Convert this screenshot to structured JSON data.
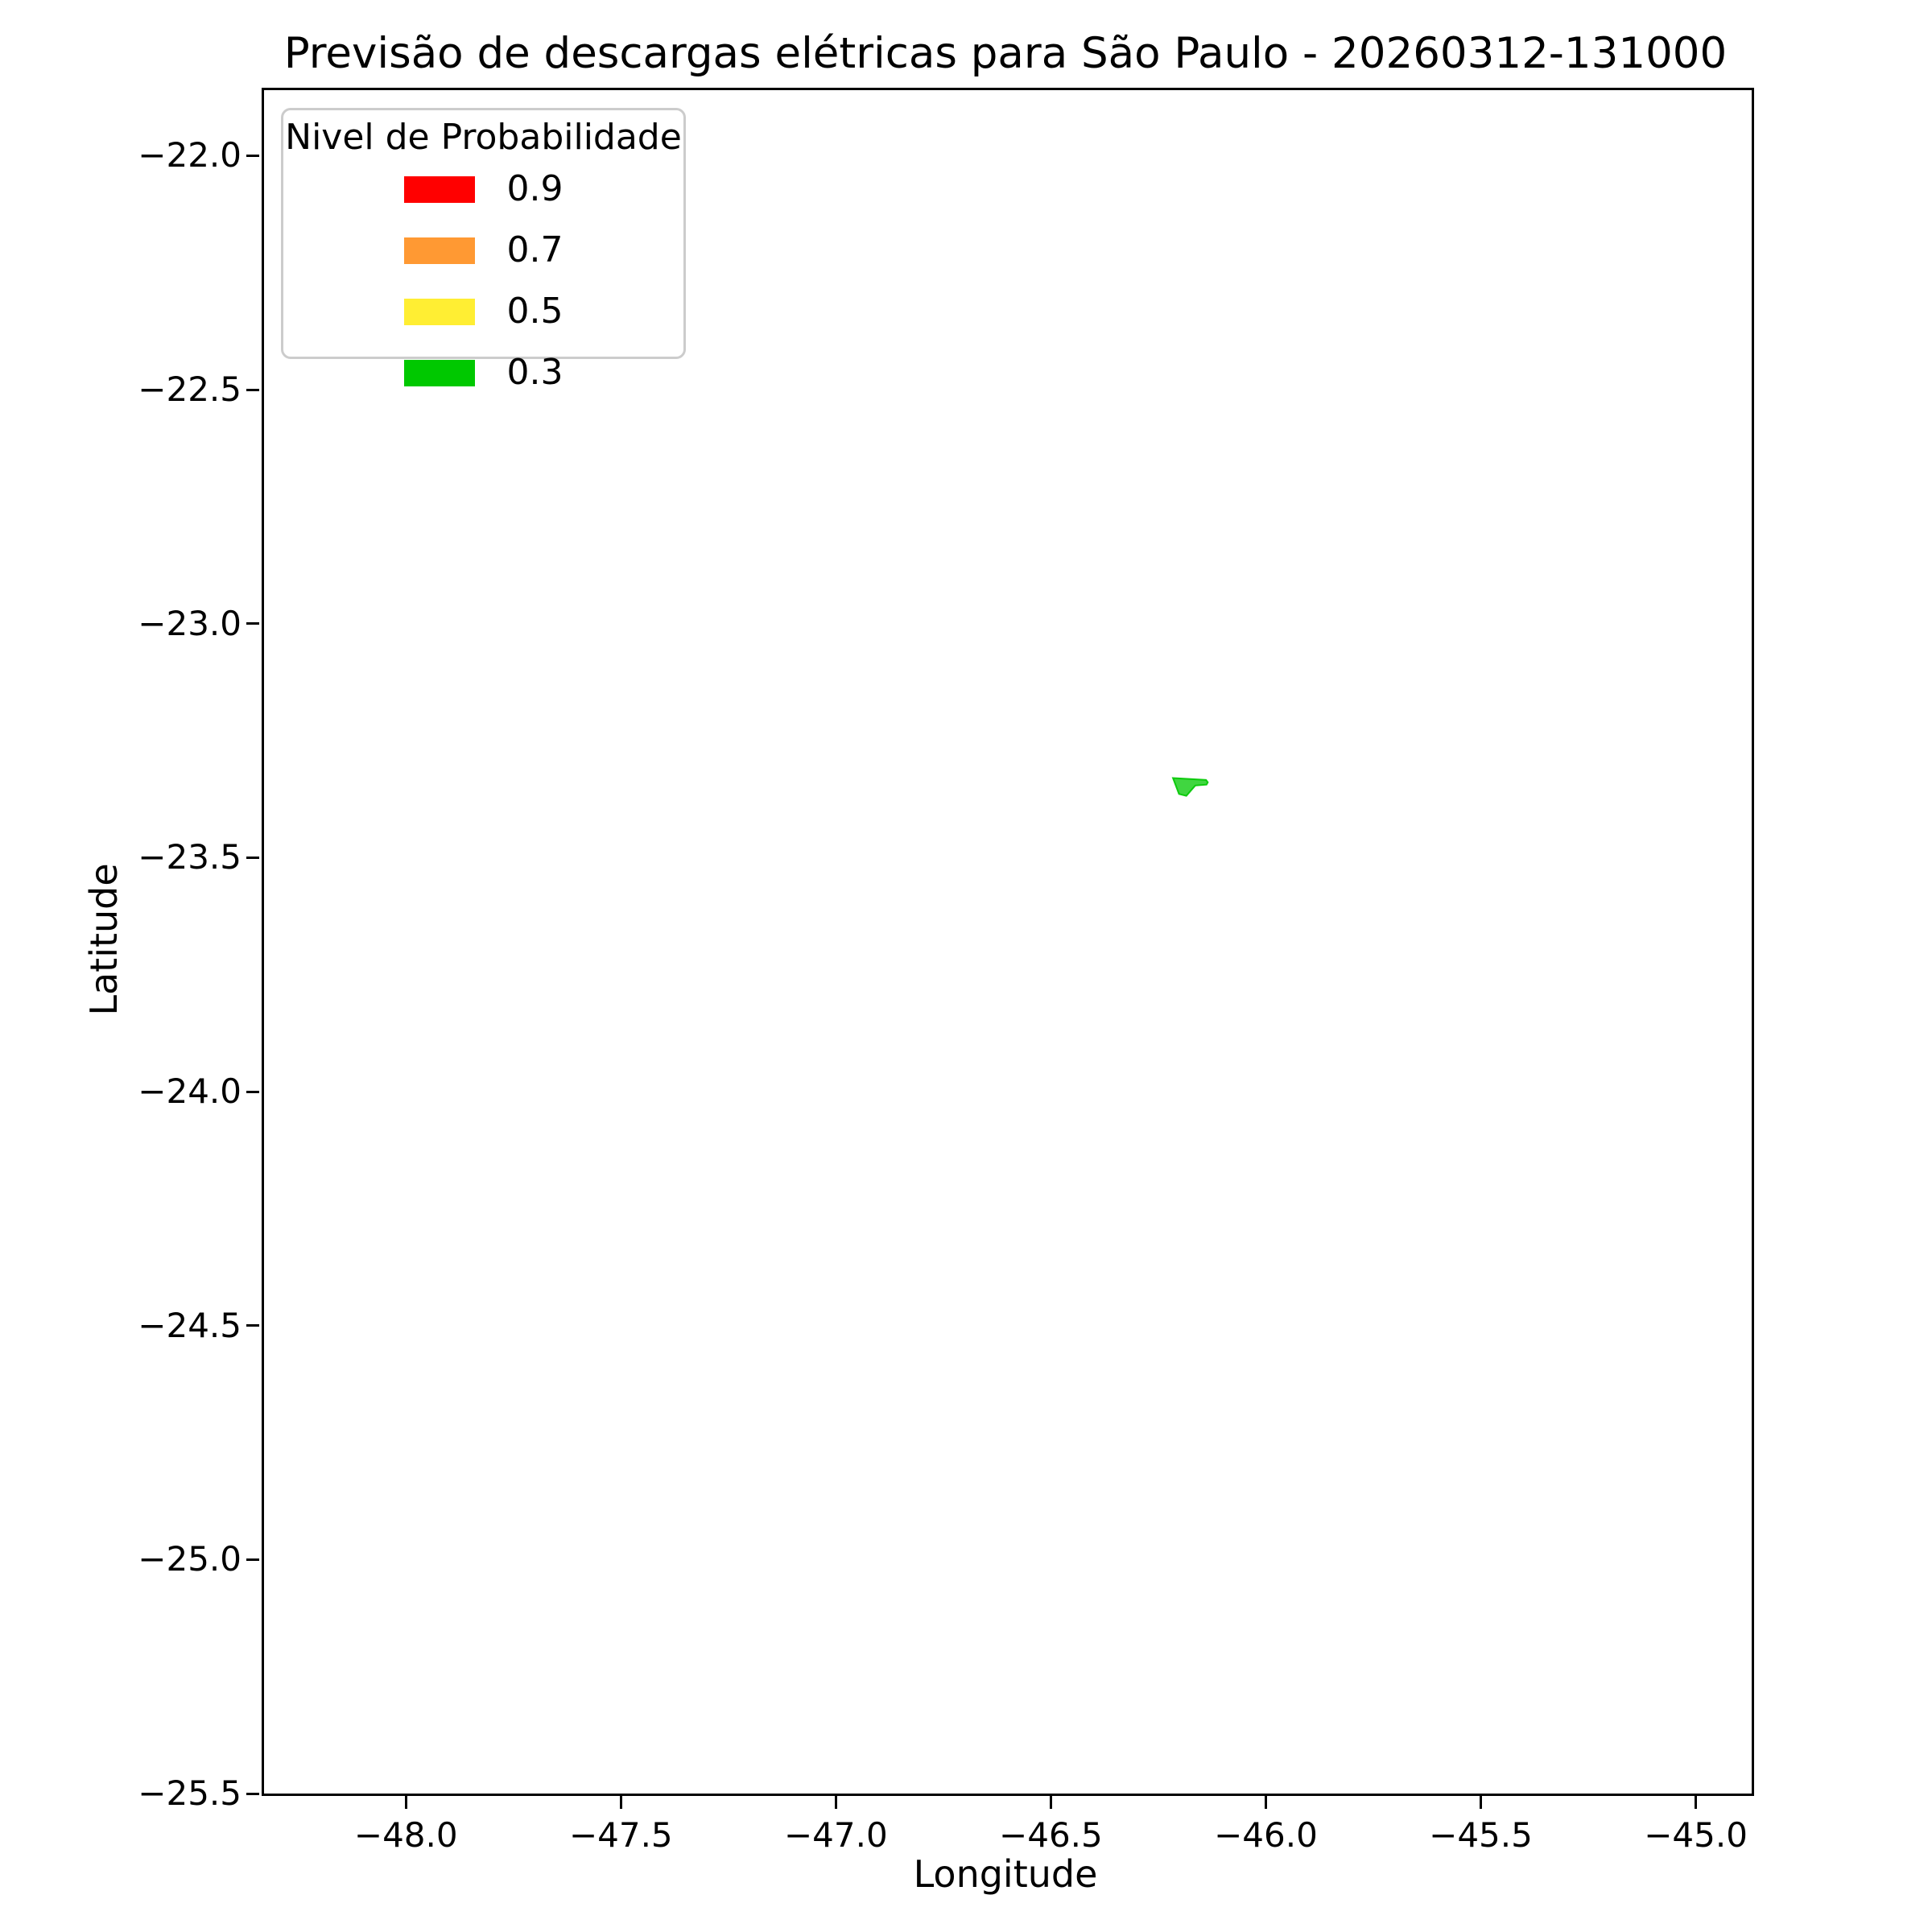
{
  "chart_data": {
    "type": "area",
    "subtype": "geo-polygon-forecast-map",
    "title": "Previsão de descargas elétricas para São Paulo - 20260312-131000",
    "xlabel": "Longitude",
    "ylabel": "Latitude",
    "xlim": [
      -48.33,
      -44.87
    ],
    "ylim": [
      -25.5,
      -21.86
    ],
    "x_ticks": [
      -48.0,
      -47.5,
      -47.0,
      -46.5,
      -46.0,
      -45.5,
      -45.0
    ],
    "x_tick_labels": [
      "−48.0",
      "−47.5",
      "−47.0",
      "−46.5",
      "−46.0",
      "−45.5",
      "−45.0"
    ],
    "y_ticks": [
      -22.0,
      -22.5,
      -23.0,
      -23.5,
      -24.0,
      -24.5,
      -25.0,
      -25.5
    ],
    "y_tick_labels": [
      "−22.0",
      "−22.5",
      "−23.0",
      "−23.5",
      "−24.0",
      "−24.5",
      "−25.0",
      "−25.5"
    ],
    "grid": false,
    "legend": {
      "title": "Nivel de Probabilidade",
      "position": "upper-left",
      "entries": [
        {
          "label": "0.9",
          "color": "#FF0000"
        },
        {
          "label": "0.7",
          "color": "#FF9933"
        },
        {
          "label": "0.5",
          "color": "#FFEE33"
        },
        {
          "label": "0.3",
          "color": "#00C800"
        }
      ]
    },
    "series": [
      {
        "name": "probability-region",
        "probability_level": 0.3,
        "color": "#00C800",
        "fill_opacity": 0.75,
        "polygon_lonlat": [
          [
            -46.216,
            -23.33
          ],
          [
            -46.139,
            -23.334
          ],
          [
            -46.135,
            -23.339
          ],
          [
            -46.138,
            -23.344
          ],
          [
            -46.164,
            -23.346
          ],
          [
            -46.167,
            -23.349
          ],
          [
            -46.185,
            -23.368
          ],
          [
            -46.202,
            -23.364
          ]
        ]
      }
    ]
  }
}
